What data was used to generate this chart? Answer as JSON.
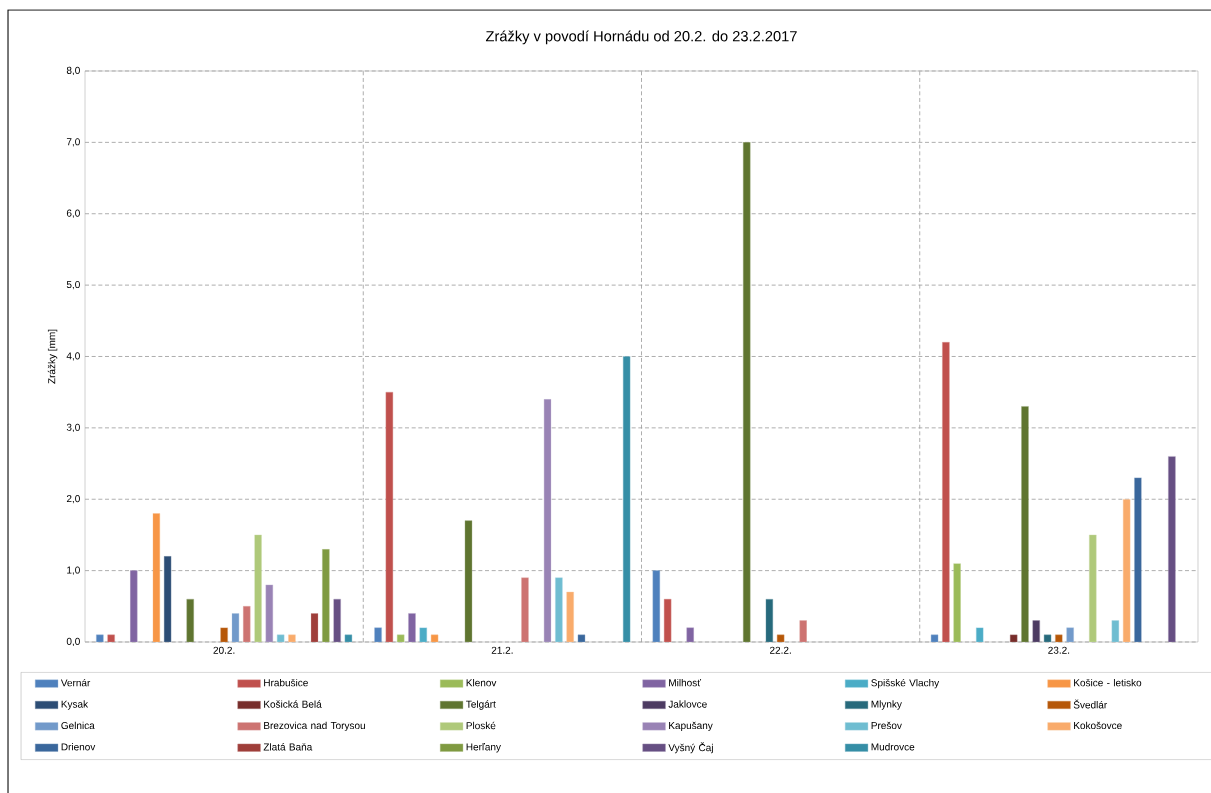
{
  "chart_data": {
    "type": "bar",
    "title": "Zrážky v povodí Hornádu od 20.2. do 23.2.2017",
    "ylabel": "Zrážky [mm]",
    "categories": [
      "20.2.",
      "21.2.",
      "22.2.",
      "23.2."
    ],
    "ylim": [
      0,
      8
    ],
    "yticks": [
      {
        "value": 0,
        "label": "0,0"
      },
      {
        "value": 1,
        "label": "1,0"
      },
      {
        "value": 2,
        "label": "2,0"
      },
      {
        "value": 3,
        "label": "3,0"
      },
      {
        "value": 4,
        "label": "4,0"
      },
      {
        "value": 5,
        "label": "5,0"
      },
      {
        "value": 6,
        "label": "6,0"
      },
      {
        "value": 7,
        "label": "7,0"
      },
      {
        "value": 8,
        "label": "8,0"
      }
    ],
    "grid": true,
    "legend": "bottom",
    "series": [
      {
        "name": "Vernár",
        "color": "#4f81bd",
        "values": [
          0.1,
          0.2,
          1.0,
          0.1
        ]
      },
      {
        "name": "Hrabušice",
        "color": "#c0504d",
        "values": [
          0.1,
          3.5,
          0.6,
          4.2
        ]
      },
      {
        "name": "Klenov",
        "color": "#9bbb59",
        "values": [
          null,
          0.1,
          null,
          1.1
        ]
      },
      {
        "name": "Milhosť",
        "color": "#8064a2",
        "values": [
          1.0,
          0.4,
          0.2,
          null
        ]
      },
      {
        "name": "Spišské Vlachy",
        "color": "#4bacc6",
        "values": [
          null,
          0.2,
          null,
          0.2
        ]
      },
      {
        "name": "Košice - letisko",
        "color": "#f79646",
        "values": [
          1.8,
          0.1,
          null,
          null
        ]
      },
      {
        "name": "Kysak",
        "color": "#2c4d75",
        "values": [
          1.2,
          null,
          null,
          null
        ]
      },
      {
        "name": "Košická Belá",
        "color": "#772c2a",
        "values": [
          null,
          null,
          null,
          0.1
        ]
      },
      {
        "name": "Telgárt",
        "color": "#5f7530",
        "values": [
          0.6,
          1.7,
          7.0,
          3.3
        ]
      },
      {
        "name": "Jaklovce",
        "color": "#4d3b62",
        "values": [
          null,
          null,
          null,
          0.3
        ]
      },
      {
        "name": "Mlynky",
        "color": "#276a7c",
        "values": [
          null,
          null,
          0.6,
          0.1
        ]
      },
      {
        "name": "Švedlár",
        "color": "#b65708",
        "values": [
          0.2,
          null,
          0.1,
          0.1
        ]
      },
      {
        "name": "Gelnica",
        "color": "#729aca",
        "values": [
          0.4,
          null,
          null,
          0.2
        ]
      },
      {
        "name": "Brezovica nad Torysou",
        "color": "#cd7371",
        "values": [
          0.5,
          0.9,
          0.3,
          null
        ]
      },
      {
        "name": "Ploské",
        "color": "#afc97a",
        "values": [
          1.5,
          null,
          null,
          1.5
        ]
      },
      {
        "name": "Kapušany",
        "color": "#9983b5",
        "values": [
          0.8,
          3.4,
          null,
          null
        ]
      },
      {
        "name": "Prešov",
        "color": "#6fbdd1",
        "values": [
          0.1,
          0.9,
          null,
          0.3
        ]
      },
      {
        "name": "Kokošovce",
        "color": "#f9ab6b",
        "values": [
          0.1,
          0.7,
          null,
          2.0
        ]
      },
      {
        "name": "Drienov",
        "color": "#3a679c",
        "values": [
          null,
          0.1,
          null,
          2.3
        ]
      },
      {
        "name": "Zlatá Baňa",
        "color": "#9f3e3a",
        "values": [
          0.4,
          null,
          null,
          null
        ]
      },
      {
        "name": "Herľany",
        "color": "#7f9a41",
        "values": [
          1.3,
          null,
          null,
          null
        ]
      },
      {
        "name": "Vyšný Čaj",
        "color": "#664f83",
        "values": [
          0.6,
          null,
          null,
          2.6
        ]
      },
      {
        "name": "Mudrovce",
        "color": "#358ea6",
        "values": [
          0.1,
          4.0,
          null,
          null
        ]
      }
    ]
  }
}
